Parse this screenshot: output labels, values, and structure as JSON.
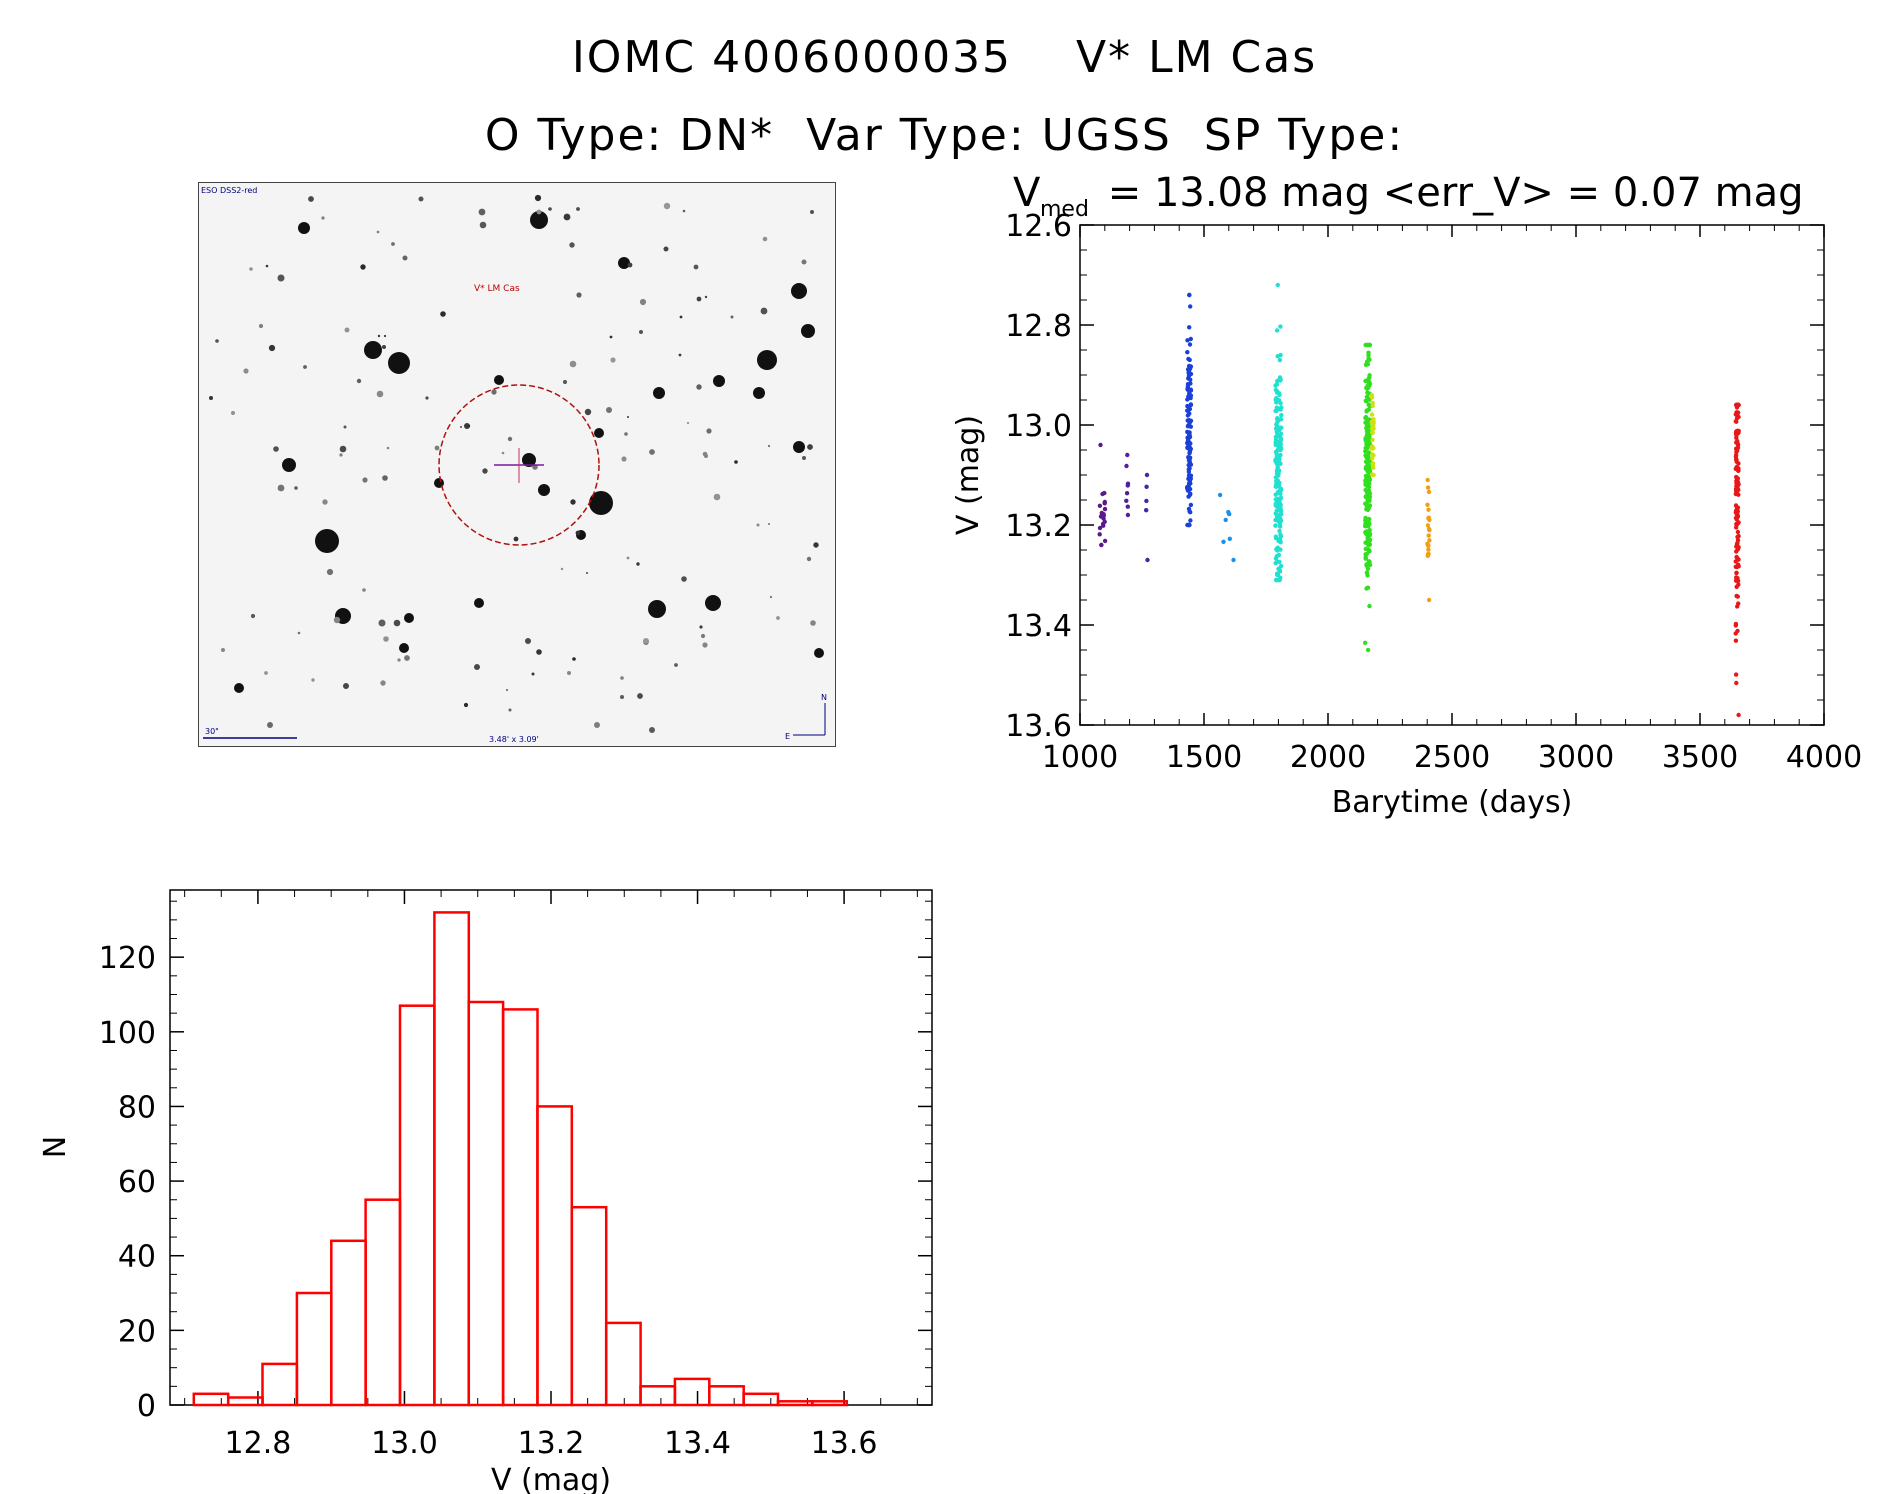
{
  "header": {
    "line1": "IOMC 4006000035    V* LM Cas",
    "line2": "O Type: DN*  Var Type: UGSS  SP Type:"
  },
  "finder": {
    "survey_label": "ESO DSS2-red",
    "target_label": "V* LM Cas",
    "scale_label": "30\"",
    "fov_label": "3.48' x 3.09'",
    "north_label": "N",
    "east_label": "E"
  },
  "chart_data": [
    {
      "type": "scatter",
      "title_main": "V",
      "title_sub": "med",
      "title_rest": " = 13.08 mag <err_V> = 0.07 mag",
      "xlabel": "Barytime (days)",
      "ylabel": "V (mag)",
      "xlim": [
        1000,
        4000
      ],
      "ylim": [
        12.6,
        13.6
      ],
      "y_inverted": true,
      "xticks": [
        1000,
        1500,
        2000,
        2500,
        3000,
        3500,
        4000
      ],
      "yticks": [
        12.6,
        12.8,
        13.0,
        13.2,
        13.4,
        13.6
      ],
      "series": [
        {
          "color": "#5a1a8a",
          "x_center": 1090,
          "x_spread": 12,
          "count": 22,
          "y_min": 13.04,
          "y_max": 13.24,
          "y_center": 13.17
        },
        {
          "color": "#5020a0",
          "x_center": 1190,
          "x_spread": 6,
          "count": 8,
          "y_min": 13.06,
          "y_max": 13.18,
          "y_center": 13.12
        },
        {
          "color": "#3a2aa8",
          "x_center": 1270,
          "x_spread": 3,
          "count": 5,
          "y_min": 13.1,
          "y_max": 13.27,
          "y_center": 13.15
        },
        {
          "color": "#1a40d8",
          "x_center": 1440,
          "x_spread": 8,
          "count": 120,
          "y_min": 12.74,
          "y_max": 13.2,
          "y_center": 13.03
        },
        {
          "color": "#1a90e8",
          "x_center": 1590,
          "x_spread": 30,
          "count": 7,
          "y_min": 13.14,
          "y_max": 13.27,
          "y_center": 13.2
        },
        {
          "color": "#20e0d0",
          "x_center": 1800,
          "x_spread": 12,
          "count": 200,
          "y_min": 12.72,
          "y_max": 13.31,
          "y_center": 13.1
        },
        {
          "color": "#30e020",
          "x_center": 2160,
          "x_spread": 10,
          "count": 220,
          "y_min": 12.84,
          "y_max": 13.45,
          "y_center": 13.08
        },
        {
          "color": "#d0e010",
          "x_center": 2180,
          "x_spread": 4,
          "count": 30,
          "y_min": 12.94,
          "y_max": 13.1,
          "y_center": 13.02
        },
        {
          "color": "#f0a010",
          "x_center": 2405,
          "x_spread": 4,
          "count": 22,
          "y_min": 13.11,
          "y_max": 13.35,
          "y_center": 13.2
        },
        {
          "color": "#e81818",
          "x_center": 3650,
          "x_spread": 6,
          "count": 140,
          "y_min": 12.96,
          "y_max": 13.58,
          "y_center": 13.15
        }
      ]
    },
    {
      "type": "bar",
      "xlabel": "V (mag)",
      "ylabel": "N",
      "xlim": [
        12.68,
        13.72
      ],
      "ylim": [
        0,
        138
      ],
      "xticks": [
        12.8,
        13.0,
        13.2,
        13.4,
        13.6
      ],
      "yticks": [
        0,
        20,
        40,
        60,
        80,
        100,
        120
      ],
      "bin_start": 12.7125,
      "bin_width": 0.0469,
      "values": [
        3,
        2,
        11,
        30,
        44,
        55,
        107,
        132,
        108,
        106,
        80,
        53,
        22,
        5,
        7,
        5,
        3,
        1,
        1
      ],
      "color": "#ff0000"
    }
  ]
}
